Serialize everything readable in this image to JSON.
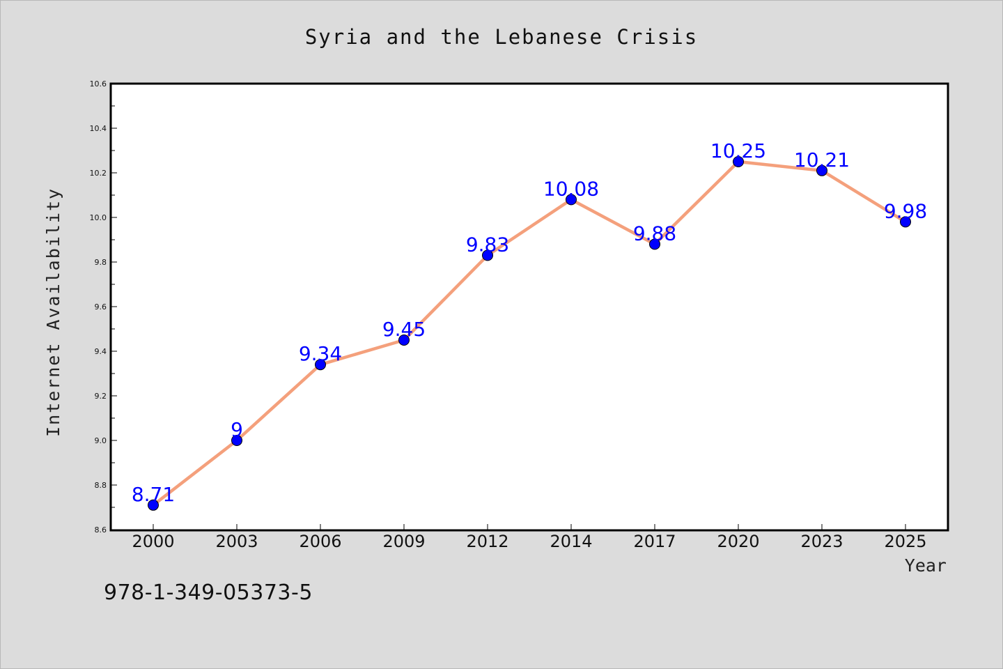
{
  "chart_data": {
    "type": "line",
    "title": "Syria and the Lebanese Crisis",
    "xlabel": "Year",
    "ylabel": "Internet Availability",
    "categories": [
      "2000",
      "2003",
      "2006",
      "2009",
      "2012",
      "2014",
      "2017",
      "2020",
      "2023",
      "2025"
    ],
    "values": [
      8.71,
      9,
      9.34,
      9.45,
      9.83,
      10.08,
      9.88,
      10.25,
      10.21,
      9.98
    ],
    "data_labels": [
      "8.71",
      "9",
      "9.34",
      "9.45",
      "9.83",
      "10.08",
      "9.88",
      "10.25",
      "10.21",
      "9.98"
    ],
    "ylim": [
      8.6,
      10.6
    ],
    "yticks": [
      "8.6",
      "8.8",
      "9.0",
      "9.2",
      "9.4",
      "9.6",
      "9.8",
      "10.0",
      "10.2",
      "10.4",
      "10.6"
    ],
    "grid": false,
    "line_color": "#f4a07c",
    "marker_color": "#0000ff",
    "label_color": "#0000ff"
  },
  "footer": {
    "isbn": "978-1-349-05373-5"
  }
}
